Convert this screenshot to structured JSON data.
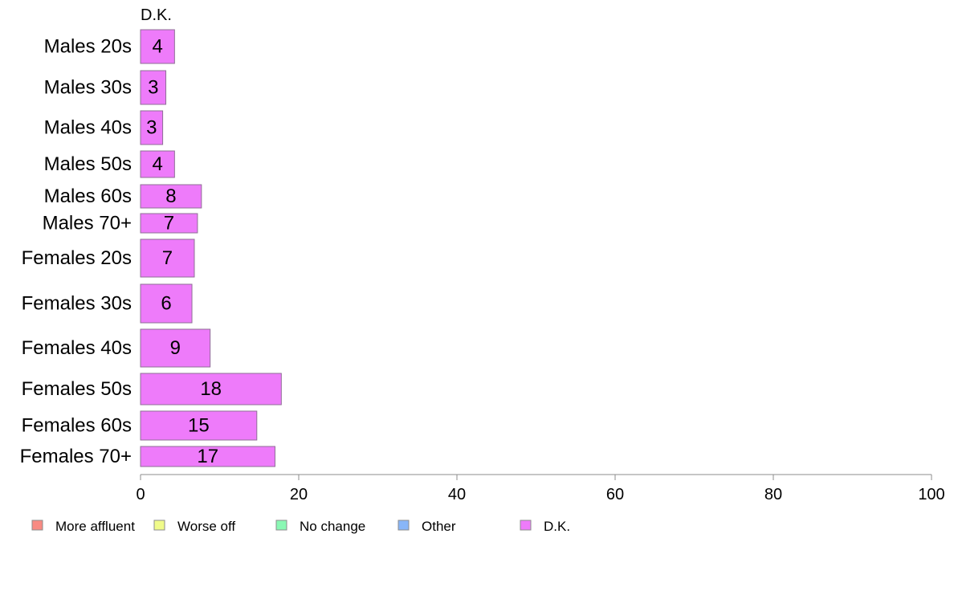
{
  "chart_data": {
    "type": "bar",
    "orientation": "horizontal",
    "column_header": "D.K.",
    "categories": [
      "Males 20s",
      "Males 30s",
      "Males 40s",
      "Males 50s",
      "Males 60s",
      "Males 70+",
      "Females 20s",
      "Females 30s",
      "Females 40s",
      "Females 50s",
      "Females 60s",
      "Females 70+"
    ],
    "series": [
      {
        "name": "D.K.",
        "values": [
          4.3,
          3.2,
          2.8,
          4.3,
          7.7,
          7.2,
          6.8,
          6.5,
          8.8,
          17.8,
          14.7,
          17.0
        ],
        "labels": [
          "4",
          "3",
          "3",
          "4",
          "8",
          "7",
          "7",
          "6",
          "9",
          "18",
          "15",
          "17"
        ]
      }
    ],
    "xlim": [
      0,
      100
    ],
    "xticks": [
      "0",
      "20",
      "40",
      "60",
      "80",
      "100"
    ],
    "grid": false,
    "legend": {
      "position": "bottom",
      "entries": [
        {
          "label": "More affluent",
          "color": "#f88a82"
        },
        {
          "label": "Worse off",
          "color": "#f0fb8a"
        },
        {
          "label": "No change",
          "color": "#8af8b4"
        },
        {
          "label": "Other",
          "color": "#88b6f8"
        },
        {
          "label": "D.K.",
          "color": "#ee7bfa"
        }
      ]
    },
    "bar_color": "#ee7bfa",
    "bar_border_color": "#8f6f96",
    "axis_color": "#8c8c8c"
  }
}
